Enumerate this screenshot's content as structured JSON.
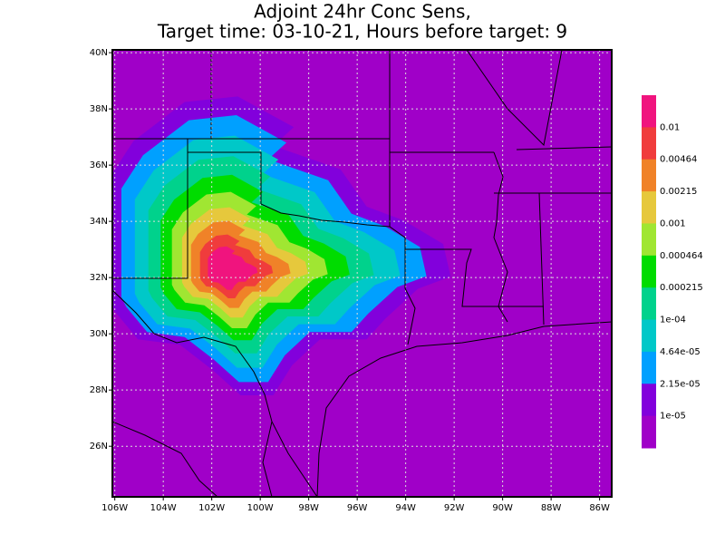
{
  "chart_data": {
    "type": "contour",
    "title": [
      "Adjoint 24hr Conc Sens,",
      "Target time: 03-10-21, Hours before target: 9"
    ],
    "xlim": [
      -106.1,
      -85.5
    ],
    "ylim": [
      24.2,
      40.1
    ],
    "xticks": [
      {
        "value": -106,
        "label": "106W"
      },
      {
        "value": -104,
        "label": "104W"
      },
      {
        "value": -102,
        "label": "102W"
      },
      {
        "value": -100,
        "label": "100W"
      },
      {
        "value": -98,
        "label": "98W"
      },
      {
        "value": -96,
        "label": "96W"
      },
      {
        "value": -94,
        "label": "94W"
      },
      {
        "value": -92,
        "label": "92W"
      },
      {
        "value": -90,
        "label": "90W"
      },
      {
        "value": -88,
        "label": "88W"
      },
      {
        "value": -86,
        "label": "86W"
      }
    ],
    "yticks": [
      {
        "value": 26,
        "label": "26N"
      },
      {
        "value": 28,
        "label": "28N"
      },
      {
        "value": 30,
        "label": "30N"
      },
      {
        "value": 32,
        "label": "32N"
      },
      {
        "value": 34,
        "label": "34N"
      },
      {
        "value": 36,
        "label": "36N"
      },
      {
        "value": 38,
        "label": "38N"
      },
      {
        "value": 40,
        "label": "40N"
      }
    ],
    "grid": true,
    "levels": [
      0.01,
      0.00464,
      0.00215,
      0.001,
      0.000464,
      0.000215,
      {
        "value": 0.0001,
        "label": "1e-04"
      },
      {
        "value": 4.64e-05,
        "label": "4.64e-05"
      },
      {
        "value": 2.15e-05,
        "label": "2.15e-05"
      },
      {
        "value": 1e-05,
        "label": "1e-05"
      }
    ],
    "colors": [
      "#f0147e",
      "#f03c3c",
      "#f08228",
      "#e6c83c",
      "#a0e632",
      "#00dc00",
      "#00d28c",
      "#00c8c8",
      "#00a0ff",
      "#8200dc",
      "#a000c8"
    ]
  }
}
